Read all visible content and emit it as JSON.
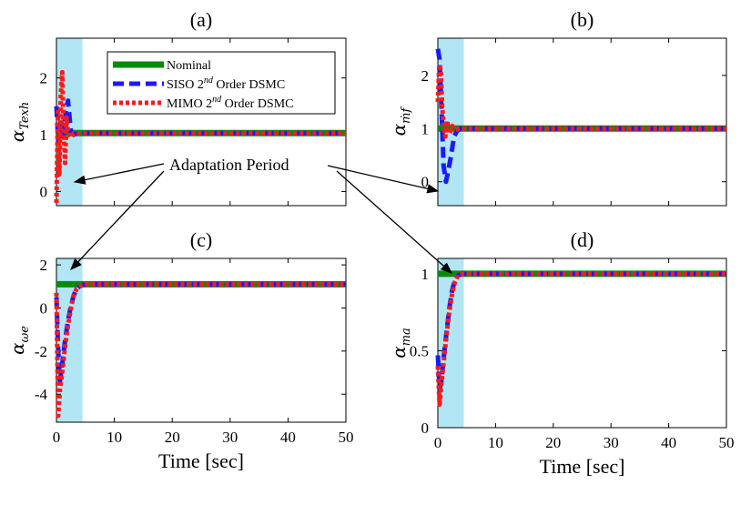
{
  "chart_data": [
    {
      "panel": "(a)",
      "type": "line",
      "title": "(a)",
      "ylabel": "α_T_exh",
      "ylabel_symbol": "α",
      "ylabel_sub": "Texh",
      "xlabel": "",
      "xlim": [
        0,
        50
      ],
      "ylim": [
        -0.25,
        2.7
      ],
      "yticks": [
        "0",
        "1",
        "2"
      ],
      "ytick_values": [
        0,
        1,
        2
      ],
      "xticks": [],
      "xtick_values": [],
      "highlight": {
        "x_from": 0,
        "x_to": 4.5,
        "color": "#b3e6f5"
      },
      "series": [
        {
          "name": "Nominal",
          "color": "#0a8a0a",
          "style": "solid",
          "x": [
            0,
            50
          ],
          "y": [
            1.03,
            1.03
          ]
        },
        {
          "name": "SISO 2nd Order DSMC",
          "color": "#1a1aff",
          "style": "dashed",
          "x": [
            0,
            0.3,
            0.6,
            0.9,
            1.2,
            1.6,
            2.0,
            2.5,
            3.0,
            3.5,
            4.5,
            50
          ],
          "y": [
            1.5,
            0.9,
            1.0,
            1.2,
            0.95,
            1.4,
            1.6,
            1.05,
            1.0,
            1.02,
            1.03,
            1.03
          ]
        },
        {
          "name": "MIMO 2nd Order DSMC",
          "color": "#ff1a1a",
          "style": "dotted",
          "x": [
            0,
            0.25,
            0.5,
            0.75,
            1.0,
            1.25,
            1.5,
            1.75,
            2.0,
            2.5,
            3.0,
            4.5,
            50
          ],
          "y": [
            -0.2,
            1.4,
            0.3,
            1.7,
            2.1,
            1.0,
            0.5,
            1.3,
            1.05,
            0.95,
            1.02,
            1.03,
            1.03
          ]
        }
      ]
    },
    {
      "panel": "(b)",
      "type": "line",
      "title": "(b)",
      "ylabel": "α_ṁ_f",
      "ylabel_symbol": "α",
      "ylabel_sub": "ṁf",
      "xlabel": "",
      "xlim": [
        0,
        50
      ],
      "ylim": [
        -0.45,
        2.7
      ],
      "yticks": [
        "0",
        "1",
        "2"
      ],
      "ytick_values": [
        0,
        1,
        2
      ],
      "xticks": [],
      "xtick_values": [],
      "highlight": {
        "x_from": 0,
        "x_to": 4.5,
        "color": "#b3e6f5"
      },
      "series": [
        {
          "name": "Nominal",
          "color": "#0a8a0a",
          "style": "solid",
          "x": [
            0,
            50
          ],
          "y": [
            1.0,
            1.0
          ]
        },
        {
          "name": "SISO 2nd Order DSMC",
          "color": "#1a1aff",
          "style": "dashed",
          "x": [
            0,
            0.3,
            0.7,
            1.0,
            1.4,
            1.8,
            2.3,
            2.8,
            3.3,
            4.0,
            50
          ],
          "y": [
            2.5,
            2.3,
            1.2,
            0.3,
            0.0,
            0.2,
            0.5,
            0.85,
            0.95,
            1.0,
            1.0
          ]
        },
        {
          "name": "MIMO 2nd Order DSMC",
          "color": "#ff1a1a",
          "style": "dotted",
          "x": [
            0,
            0.25,
            0.5,
            0.75,
            1.0,
            1.3,
            1.6,
            2.0,
            2.5,
            3.0,
            4.0,
            50
          ],
          "y": [
            1.5,
            2.2,
            2.1,
            1.4,
            1.1,
            0.85,
            1.15,
            0.9,
            1.05,
            0.98,
            1.0,
            1.0
          ]
        }
      ]
    },
    {
      "panel": "(c)",
      "type": "line",
      "title": "(c)",
      "ylabel": "α_ω_e",
      "ylabel_symbol": "α",
      "ylabel_sub": "ωe",
      "xlabel": "Time [sec]",
      "xlim": [
        0,
        50
      ],
      "ylim": [
        -5.3,
        2.3
      ],
      "yticks": [
        "2",
        "0",
        "-2",
        "-4"
      ],
      "ytick_values": [
        2,
        0,
        -2,
        -4
      ],
      "xticks": [
        "0",
        "10",
        "20",
        "30",
        "40",
        "50"
      ],
      "xtick_values": [
        0,
        10,
        20,
        30,
        40,
        50
      ],
      "highlight": {
        "x_from": 0,
        "x_to": 4.5,
        "color": "#b3e6f5"
      },
      "series": [
        {
          "name": "Nominal",
          "color": "#0a8a0a",
          "style": "solid",
          "x": [
            0,
            50
          ],
          "y": [
            1.1,
            1.1
          ]
        },
        {
          "name": "SISO 2nd Order DSMC",
          "color": "#1a1aff",
          "style": "dashed",
          "x": [
            0,
            0.3,
            0.6,
            1.0,
            1.5,
            2.0,
            2.5,
            3.0,
            3.5,
            4.0,
            5.0,
            50
          ],
          "y": [
            0.5,
            -2.0,
            -3.4,
            -2.6,
            -1.5,
            -0.6,
            0.1,
            0.6,
            0.9,
            1.0,
            1.1,
            1.1
          ]
        },
        {
          "name": "MIMO 2nd Order DSMC",
          "color": "#ff1a1a",
          "style": "dotted",
          "x": [
            0,
            0.3,
            0.6,
            1.0,
            1.5,
            2.0,
            2.5,
            3.0,
            3.5,
            4.0,
            5.0,
            50
          ],
          "y": [
            0.7,
            -5.0,
            -3.8,
            -3.0,
            -1.8,
            -0.8,
            0.0,
            0.6,
            0.9,
            1.0,
            1.1,
            1.1
          ]
        }
      ]
    },
    {
      "panel": "(d)",
      "type": "line",
      "title": "(d)",
      "ylabel": "α_m_a",
      "ylabel_symbol": "α",
      "ylabel_sub": "ma",
      "xlabel": "Time [sec]",
      "xlim": [
        0,
        50
      ],
      "ylim": [
        0,
        1.1
      ],
      "yticks": [
        "0",
        "0.5",
        "1"
      ],
      "ytick_values": [
        0,
        0.5,
        1
      ],
      "xticks": [
        "0",
        "10",
        "20",
        "30",
        "40",
        "50"
      ],
      "xtick_values": [
        0,
        10,
        20,
        30,
        40,
        50
      ],
      "highlight": {
        "x_from": 0,
        "x_to": 4.5,
        "color": "#b3e6f5"
      },
      "series": [
        {
          "name": "Nominal",
          "color": "#0a8a0a",
          "style": "solid",
          "x": [
            0,
            50
          ],
          "y": [
            1.0,
            1.0
          ]
        },
        {
          "name": "SISO 2nd Order DSMC",
          "color": "#1a1aff",
          "style": "dashed",
          "x": [
            0,
            0.3,
            0.6,
            1.0,
            1.5,
            2.0,
            2.5,
            3.0,
            3.5,
            4.5,
            50
          ],
          "y": [
            0.47,
            0.25,
            0.3,
            0.45,
            0.62,
            0.78,
            0.9,
            0.96,
            0.99,
            1.0,
            1.0
          ]
        },
        {
          "name": "MIMO 2nd Order DSMC",
          "color": "#ff1a1a",
          "style": "dotted",
          "x": [
            0,
            0.3,
            0.6,
            1.0,
            1.5,
            2.0,
            2.5,
            3.0,
            3.5,
            4.5,
            50
          ],
          "y": [
            0.4,
            0.15,
            0.28,
            0.42,
            0.6,
            0.76,
            0.88,
            0.95,
            0.99,
            1.0,
            1.0
          ]
        }
      ]
    }
  ],
  "legend": {
    "items": [
      {
        "label": "Nominal",
        "sup": "",
        "suffix": "",
        "color": "#0a8a0a",
        "style": "solid"
      },
      {
        "label": "SISO 2",
        "sup": "nd",
        "suffix": " Order DSMC",
        "color": "#1a1aff",
        "style": "dashed"
      },
      {
        "label": "MIMO 2",
        "sup": "nd",
        "suffix": " Order DSMC",
        "color": "#ff1a1a",
        "style": "dotted"
      }
    ]
  },
  "annotation": {
    "text": "Adaptation Period"
  }
}
